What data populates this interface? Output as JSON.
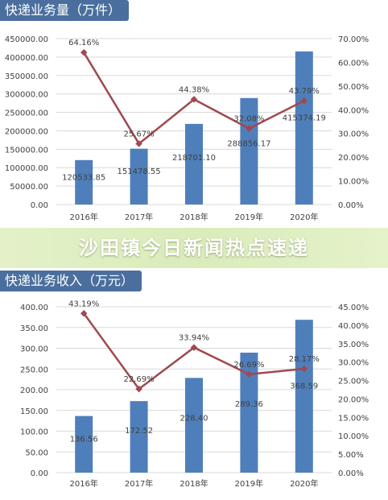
{
  "banner": {
    "text": "沙田镇今日新闻热点速递"
  },
  "chart_data": [
    {
      "type": "bar",
      "title": "快递业务量（万件）",
      "categories": [
        "2016年",
        "2017年",
        "2018年",
        "2019年",
        "2020年"
      ],
      "series": [
        {
          "kind": "bar",
          "values": [
            120533.85,
            151478.55,
            218701.1,
            288856.17,
            415374.19
          ],
          "labels": [
            "120533.85",
            "151478.55",
            "218701.10",
            "288856.17",
            "415374.19"
          ]
        },
        {
          "kind": "line",
          "axis": "right",
          "values": [
            64.16,
            25.67,
            44.38,
            32.08,
            43.79
          ],
          "labels": [
            "64.16%",
            "25.67%",
            "44.38%",
            "32.08%",
            "43.79%"
          ]
        }
      ],
      "y_left": {
        "min": 0,
        "max": 450000,
        "step": 50000,
        "ticks": [
          "0.00",
          "50000.00",
          "100000.00",
          "150000.00",
          "200000.00",
          "250000.00",
          "300000.00",
          "350000.00",
          "400000.00",
          "450000.00"
        ]
      },
      "y_right": {
        "min": 0,
        "max": 70,
        "step": 10,
        "ticks": [
          "0.00%",
          "10.00%",
          "20.00%",
          "30.00%",
          "40.00%",
          "50.00%",
          "60.00%",
          "70.00%"
        ]
      },
      "grid": true,
      "colors": {
        "bar": "#4f7fba",
        "line": "#a0494f",
        "grid": "#d9d9d9"
      }
    },
    {
      "type": "bar",
      "title": "快递业务收入（万元）",
      "categories": [
        "2016年",
        "2017年",
        "2018年",
        "2019年",
        "2020年"
      ],
      "series": [
        {
          "kind": "bar",
          "values": [
            136.56,
            172.52,
            228.4,
            289.36,
            368.59
          ],
          "labels": [
            "136.56",
            "172.52",
            "228.40",
            "289.36",
            "368.59"
          ]
        },
        {
          "kind": "line",
          "axis": "right",
          "values": [
            43.19,
            22.69,
            33.94,
            26.69,
            28.17
          ],
          "labels": [
            "43.19%",
            "22.69%",
            "33.94%",
            "26.69%",
            "28.17%"
          ]
        }
      ],
      "y_left": {
        "min": 0,
        "max": 400,
        "step": 50,
        "ticks": [
          "0.00",
          "50.00",
          "100.00",
          "150.00",
          "200.00",
          "250.00",
          "300.00",
          "350.00",
          "400.00"
        ]
      },
      "y_right": {
        "min": 0,
        "max": 45,
        "step": 5,
        "ticks": [
          "0.00%",
          "5.00%",
          "10.00%",
          "15.00%",
          "20.00%",
          "25.00%",
          "30.00%",
          "35.00%",
          "40.00%",
          "45.00%"
        ]
      },
      "grid": true,
      "colors": {
        "bar": "#4f7fba",
        "line": "#a0494f",
        "grid": "#d9d9d9"
      }
    }
  ]
}
